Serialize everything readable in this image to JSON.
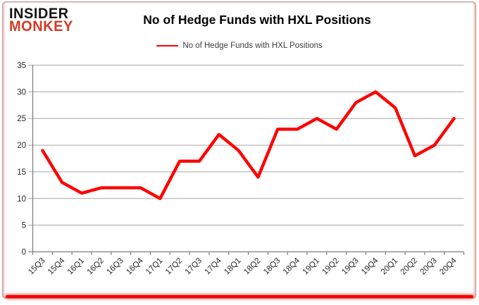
{
  "brand": {
    "line1": "INSIDER",
    "line2": "MONKEY",
    "line1_color": "#141414",
    "line2_color": "#d23b27"
  },
  "header": {
    "title": "No of Hedge Funds with HXL Positions"
  },
  "legend": {
    "label": "No of Hedge Funds with HXL Positions",
    "line_color": "#fe0000",
    "position": "top"
  },
  "chart_data": {
    "type": "line",
    "title": "No of Hedge Funds with HXL Positions",
    "categories": [
      "15Q3",
      "15Q4",
      "16Q1",
      "16Q2",
      "16Q3",
      "16Q4",
      "17Q1",
      "17Q2",
      "17Q3",
      "17Q4",
      "18Q1",
      "18Q2",
      "18Q3",
      "18Q4",
      "19Q1",
      "19Q2",
      "19Q3",
      "19Q4",
      "20Q1",
      "20Q2",
      "20Q3",
      "20Q4"
    ],
    "series": [
      {
        "name": "No of Hedge Funds with HXL Positions",
        "color": "#fe0000",
        "values": [
          19,
          13,
          11,
          12,
          12,
          12,
          10,
          17,
          17,
          22,
          19,
          14,
          23,
          23,
          25,
          23,
          28,
          30,
          27,
          18,
          20,
          25
        ]
      }
    ],
    "xlabel": "",
    "ylabel": "",
    "ylim": [
      0,
      35
    ],
    "ytick_interval": 5,
    "yticks": [
      0,
      5,
      10,
      15,
      20,
      25,
      30,
      35
    ],
    "grid": "horizontal",
    "grid_color": "#a6a6a6",
    "axis_color": "#808080",
    "tick_label_color": "#262626",
    "x_label_rotation_deg": -45,
    "legend_position": "top"
  }
}
